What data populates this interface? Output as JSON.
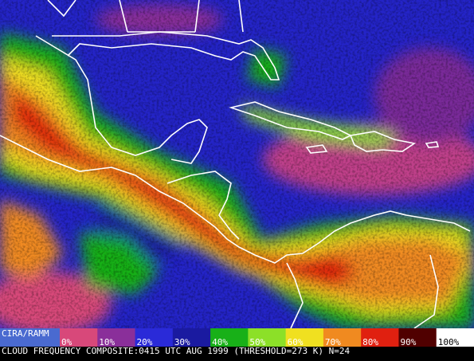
{
  "legend": {
    "source": "CIRA/RAMM",
    "items": [
      {
        "label": "0%",
        "color": "#d8487a"
      },
      {
        "label": "10%",
        "color": "#8a2f9a"
      },
      {
        "label": "20%",
        "color": "#2a2ad8"
      },
      {
        "label": "30%",
        "color": "#1a1aa0"
      },
      {
        "label": "40%",
        "color": "#18b018"
      },
      {
        "label": "50%",
        "color": "#8ce028"
      },
      {
        "label": "60%",
        "color": "#f0e020"
      },
      {
        "label": "70%",
        "color": "#f08a20"
      },
      {
        "label": "80%",
        "color": "#e02010"
      },
      {
        "label": "90%",
        "color": "#500000"
      },
      {
        "label": "100%",
        "color": "#ffffff"
      }
    ]
  },
  "caption": "CLOUD FREQUENCY COMPOSITE:0415 UTC AUG 1999 (THRESHOLD=273 K) N=24"
}
